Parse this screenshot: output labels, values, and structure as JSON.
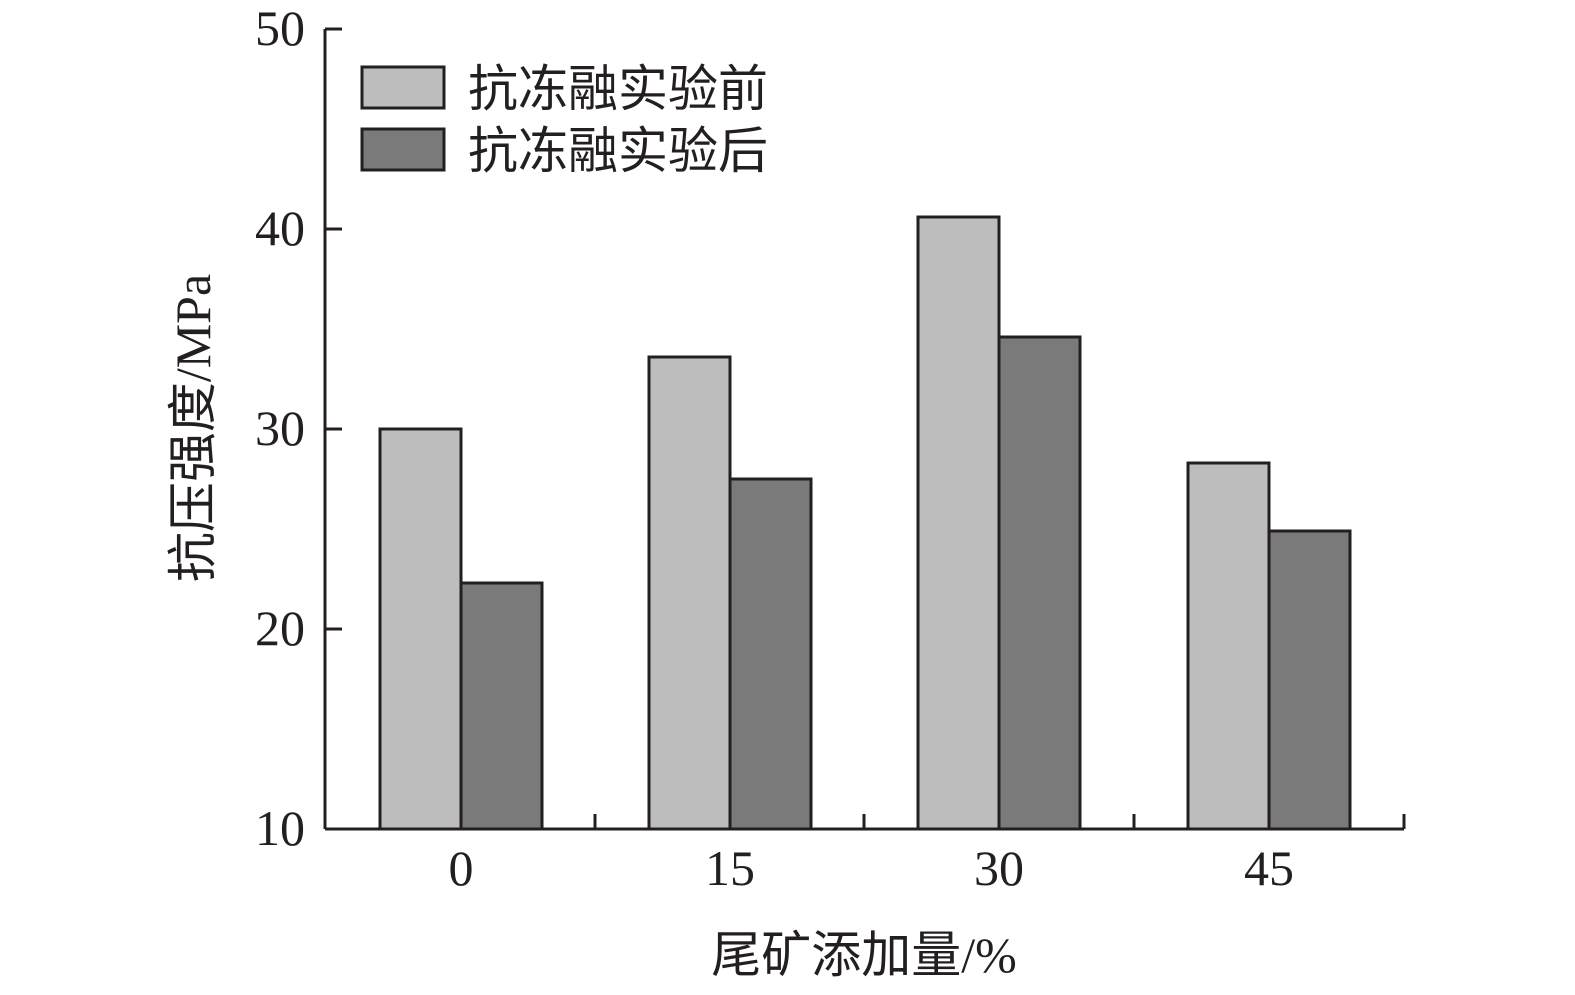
{
  "chart_data": {
    "type": "bar",
    "categories": [
      "0",
      "15",
      "30",
      "45"
    ],
    "series": [
      {
        "name": "抗冻融实验前",
        "values": [
          30.0,
          33.6,
          40.6,
          28.3
        ],
        "color": "#bdbdbd"
      },
      {
        "name": "抗冻融实验后",
        "values": [
          22.3,
          27.5,
          34.6,
          24.9
        ],
        "color": "#7b7a7a"
      }
    ],
    "title": "",
    "xlabel": "尾矿添加量/%",
    "ylabel": "抗压强度/MPa",
    "ylim": [
      10,
      50
    ],
    "yticks": [
      "10",
      "20",
      "30",
      "40",
      "50"
    ],
    "grid": false,
    "legend_position": "top-left"
  }
}
